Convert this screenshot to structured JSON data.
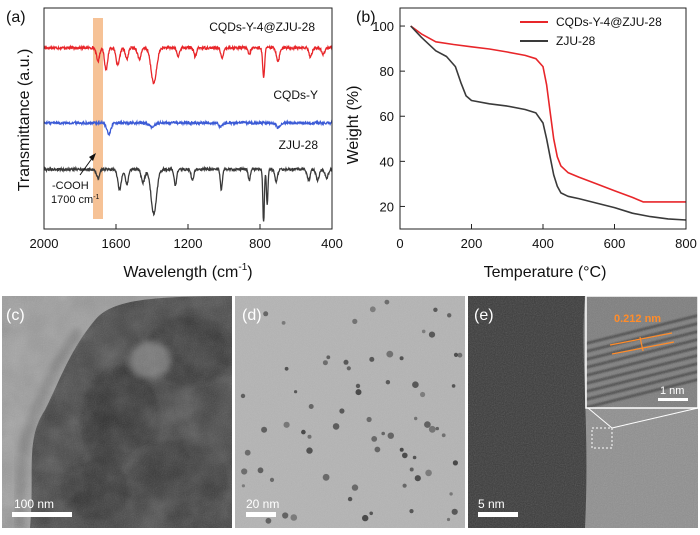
{
  "panels": {
    "a": {
      "label": "(a)"
    },
    "b": {
      "label": "(b)"
    },
    "c": {
      "label": "(c)",
      "scale_bar": "100 nm"
    },
    "d": {
      "label": "(d)",
      "scale_bar": "20 nm"
    },
    "e": {
      "label": "(e)",
      "scale_bar": "5 nm",
      "inset_scale_bar": "1 nm",
      "lattice_spacing": "0.212 nm"
    }
  },
  "colors": {
    "red": "#e8262a",
    "blue": "#3c5bd6",
    "dark": "#3a3a3a",
    "highlight": "#f5b784",
    "orange": "#ff8c2a"
  },
  "chart_data": [
    {
      "type": "line",
      "panel": "a",
      "title": "",
      "xlabel": "Wavelength (cm",
      "xlabel_sup": "-1",
      "xlabel_end": ")",
      "ylabel": "Transmittance (a.u.)",
      "xlim": [
        2000,
        400
      ],
      "x_ticks": [
        2000,
        1600,
        1200,
        800,
        400
      ],
      "y_ticks": [],
      "annotation": {
        "line1": "-COOH",
        "line2": "1700 cm",
        "sup": "-1",
        "highlight_x": 1700
      },
      "series": [
        {
          "name": "CQDs-Y-4@ZJU-28",
          "color": "#e8262a",
          "offset": 0.82,
          "dips": [
            [
              1700,
              0.06,
              12
            ],
            [
              1655,
              0.1,
              12
            ],
            [
              1590,
              0.08,
              14
            ],
            [
              1540,
              0.05,
              12
            ],
            [
              1470,
              0.05,
              14
            ],
            [
              1390,
              0.16,
              22
            ],
            [
              1255,
              0.04,
              10
            ],
            [
              1160,
              0.04,
              10
            ],
            [
              1010,
              0.05,
              10
            ],
            [
              860,
              0.03,
              10
            ],
            [
              780,
              0.13,
              8
            ],
            [
              700,
              0.06,
              12
            ],
            [
              520,
              0.04,
              12
            ],
            [
              450,
              0.03,
              12
            ]
          ]
        },
        {
          "name": "CQDs-Y",
          "color": "#3c5bd6",
          "offset": 0.48,
          "dips": [
            [
              1640,
              0.05,
              16
            ],
            [
              1400,
              0.02,
              20
            ],
            [
              1020,
              0.02,
              12
            ],
            [
              700,
              0.02,
              14
            ]
          ]
        },
        {
          "name": "ZJU-28",
          "color": "#3a3a3a",
          "offset": 0.27,
          "dips": [
            [
              1700,
              0.04,
              12
            ],
            [
              1580,
              0.09,
              14
            ],
            [
              1540,
              0.07,
              12
            ],
            [
              1450,
              0.06,
              14
            ],
            [
              1390,
              0.2,
              22
            ],
            [
              1270,
              0.07,
              10
            ],
            [
              1175,
              0.05,
              10
            ],
            [
              1015,
              0.09,
              8
            ],
            [
              860,
              0.05,
              8
            ],
            [
              780,
              0.24,
              6
            ],
            [
              760,
              0.16,
              6
            ],
            [
              710,
              0.06,
              10
            ],
            [
              530,
              0.05,
              12
            ],
            [
              480,
              0.05,
              12
            ],
            [
              430,
              0.04,
              12
            ]
          ]
        }
      ]
    },
    {
      "type": "line",
      "panel": "b",
      "title": "",
      "xlabel": "Temperature (°C)",
      "ylabel": "Weight (%)",
      "xlim": [
        0,
        800
      ],
      "ylim": [
        10,
        108
      ],
      "x_ticks": [
        0,
        200,
        400,
        600,
        800
      ],
      "y_ticks": [
        20,
        40,
        60,
        80,
        100
      ],
      "legend_position": "top-right",
      "series": [
        {
          "name": "CQDs-Y-4@ZJU-28",
          "color": "#e8262a",
          "x": [
            30,
            60,
            100,
            150,
            200,
            250,
            300,
            350,
            380,
            400,
            410,
            420,
            430,
            440,
            450,
            470,
            500,
            550,
            600,
            650,
            680,
            700,
            750,
            800
          ],
          "y": [
            100,
            96.5,
            93,
            91.8,
            90.8,
            89.8,
            88.5,
            87,
            85.5,
            82,
            74,
            62,
            50,
            42,
            38,
            35,
            33,
            30,
            27,
            24,
            22,
            22,
            22,
            22
          ]
        },
        {
          "name": "ZJU-28",
          "color": "#3a3a3a",
          "x": [
            30,
            60,
            100,
            130,
            155,
            170,
            185,
            200,
            250,
            300,
            350,
            380,
            400,
            410,
            420,
            430,
            440,
            450,
            470,
            500,
            550,
            600,
            650,
            700,
            750,
            800
          ],
          "y": [
            100,
            95,
            89,
            86.5,
            82,
            75,
            69,
            67,
            65.5,
            64.5,
            63,
            61.5,
            57,
            50,
            42,
            34,
            29,
            26,
            24.5,
            23.5,
            21.5,
            19.5,
            17,
            15.5,
            14.5,
            14
          ]
        }
      ]
    }
  ]
}
